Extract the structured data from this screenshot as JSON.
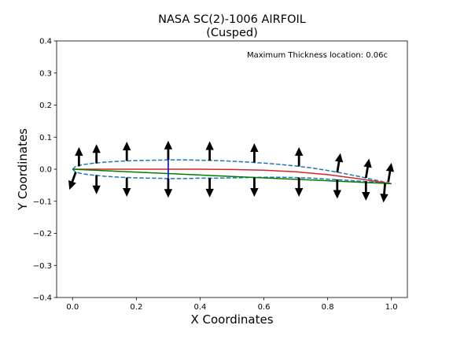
{
  "chart_data": {
    "type": "line",
    "title": "NASA SC(2)-1006 AIRFOIL",
    "subtitle": "(Cusped)",
    "xlabel": "X Coordinates",
    "ylabel": "Y Coordinates",
    "xlim": [
      -0.05,
      1.05
    ],
    "ylim": [
      -0.4,
      0.4
    ],
    "xticks": [
      0.0,
      0.2,
      0.4,
      0.6,
      0.8,
      1.0
    ],
    "xtick_labels": [
      "0.0",
      "0.2",
      "0.4",
      "0.6",
      "0.8",
      "1.0"
    ],
    "yticks": [
      -0.4,
      -0.3,
      -0.2,
      -0.1,
      0.0,
      0.1,
      0.2,
      0.3,
      0.4
    ],
    "ytick_labels": [
      "−0.4",
      "−0.3",
      "−0.2",
      "−0.1",
      "0.0",
      "0.1",
      "0.2",
      "0.3",
      "0.4"
    ],
    "grid": false,
    "annotation": "Maximum Thickness location: 0.06c",
    "series": [
      {
        "role": "upper-surface",
        "style": "dashed",
        "color": "#1f77b4",
        "x": [
          0.0,
          0.01,
          0.03,
          0.06,
          0.1,
          0.15,
          0.2,
          0.25,
          0.3,
          0.35,
          0.4,
          0.45,
          0.5,
          0.55,
          0.6,
          0.65,
          0.7,
          0.75,
          0.8,
          0.85,
          0.9,
          0.95,
          1.0
        ],
        "y": [
          0.0,
          0.009,
          0.014,
          0.018,
          0.022,
          0.025,
          0.027,
          0.028,
          0.029,
          0.029,
          0.028,
          0.027,
          0.025,
          0.022,
          0.019,
          0.015,
          0.01,
          0.004,
          -0.004,
          -0.013,
          -0.023,
          -0.034,
          -0.045
        ]
      },
      {
        "role": "lower-surface",
        "style": "dashed",
        "color": "#1f77b4",
        "x": [
          0.0,
          0.01,
          0.03,
          0.06,
          0.1,
          0.15,
          0.2,
          0.25,
          0.3,
          0.35,
          0.4,
          0.45,
          0.5,
          0.55,
          0.6,
          0.65,
          0.7,
          0.75,
          0.8,
          0.85,
          0.9,
          0.95,
          1.0
        ],
        "y": [
          0.0,
          -0.009,
          -0.014,
          -0.018,
          -0.022,
          -0.025,
          -0.027,
          -0.028,
          -0.029,
          -0.029,
          -0.028,
          -0.028,
          -0.027,
          -0.026,
          -0.025,
          -0.025,
          -0.026,
          -0.028,
          -0.031,
          -0.034,
          -0.037,
          -0.041,
          -0.045
        ]
      },
      {
        "role": "camber-line",
        "style": "solid",
        "color": "#d62728",
        "x": [
          0.0,
          0.1,
          0.2,
          0.3,
          0.4,
          0.5,
          0.6,
          0.7,
          0.8,
          0.9,
          1.0
        ],
        "y": [
          0.0,
          0.0,
          0.0,
          0.0,
          0.0,
          -0.001,
          -0.003,
          -0.008,
          -0.017,
          -0.03,
          -0.045
        ]
      },
      {
        "role": "chord-line",
        "style": "solid",
        "color": "#008000",
        "x": [
          0.0,
          1.0
        ],
        "y": [
          0.0,
          -0.045
        ]
      }
    ],
    "thickness_marker": {
      "color": "#0000ff",
      "x": 0.3,
      "y": [
        -0.029,
        0.029
      ]
    },
    "normal_vectors": {
      "color": "#000000",
      "upper": [
        {
          "x": 0.02,
          "y": 0.009,
          "dx": 0.0,
          "dy": 0.06
        },
        {
          "x": 0.075,
          "y": 0.018,
          "dx": 0.0,
          "dy": 0.06
        },
        {
          "x": 0.17,
          "y": 0.026,
          "dx": 0.0,
          "dy": 0.06
        },
        {
          "x": 0.3,
          "y": 0.029,
          "dx": 0.0,
          "dy": 0.06
        },
        {
          "x": 0.43,
          "y": 0.027,
          "dx": 0.0,
          "dy": 0.06
        },
        {
          "x": 0.57,
          "y": 0.021,
          "dx": 0.0,
          "dy": 0.06
        },
        {
          "x": 0.71,
          "y": 0.009,
          "dx": 0.0,
          "dy": 0.06
        },
        {
          "x": 0.83,
          "y": -0.01,
          "dx": 0.01,
          "dy": 0.06
        },
        {
          "x": 0.92,
          "y": -0.027,
          "dx": 0.01,
          "dy": 0.06
        },
        {
          "x": 0.99,
          "y": -0.04,
          "dx": 0.01,
          "dy": 0.06
        }
      ],
      "lower": [
        {
          "x": 0.01,
          "y": -0.009,
          "dx": -0.02,
          "dy": -0.055
        },
        {
          "x": 0.075,
          "y": -0.018,
          "dx": 0.0,
          "dy": -0.06
        },
        {
          "x": 0.17,
          "y": -0.026,
          "dx": 0.0,
          "dy": -0.06
        },
        {
          "x": 0.3,
          "y": -0.029,
          "dx": 0.0,
          "dy": -0.06
        },
        {
          "x": 0.43,
          "y": -0.028,
          "dx": 0.0,
          "dy": -0.06
        },
        {
          "x": 0.57,
          "y": -0.026,
          "dx": 0.0,
          "dy": -0.06
        },
        {
          "x": 0.71,
          "y": -0.026,
          "dx": 0.0,
          "dy": -0.06
        },
        {
          "x": 0.83,
          "y": -0.032,
          "dx": 0.0,
          "dy": -0.06
        },
        {
          "x": 0.92,
          "y": -0.038,
          "dx": 0.0,
          "dy": -0.06
        },
        {
          "x": 0.98,
          "y": -0.044,
          "dx": -0.005,
          "dy": -0.06
        }
      ]
    }
  }
}
